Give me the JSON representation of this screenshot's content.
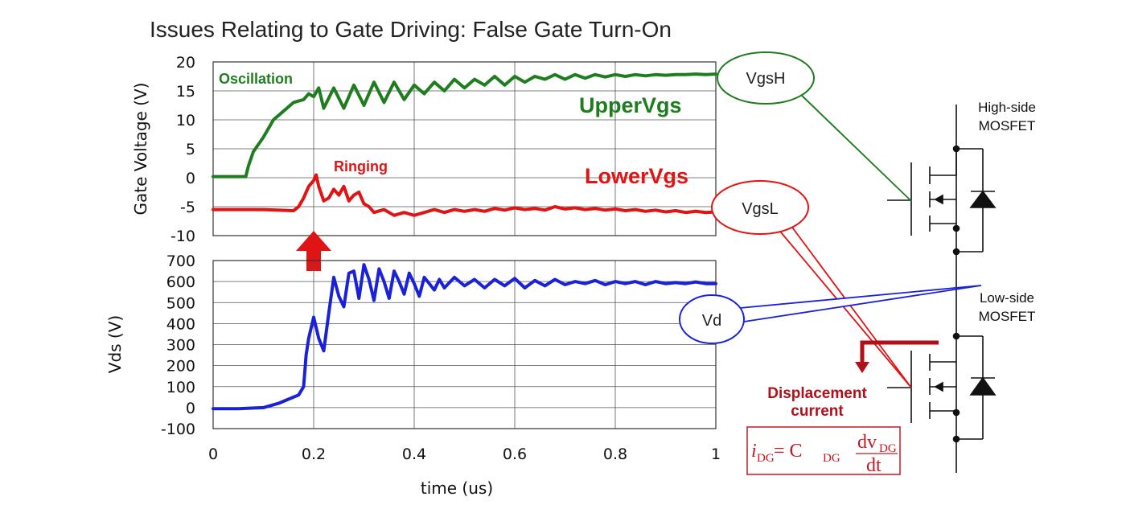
{
  "title": "Issues Relating to Gate Driving:  False Gate Turn-On",
  "colors": {
    "upper": "#1e7d1e",
    "lower": "#e01414",
    "vd": "#1a22d8",
    "callout_dark": "#b0101a",
    "grid": "#555555"
  },
  "chart_data": [
    {
      "type": "line",
      "title": "",
      "xlabel": "",
      "ylabel": "Gate Voltage (V)",
      "xlim": [
        0,
        1
      ],
      "ylim": [
        -10,
        20
      ],
      "yticks": [
        "20",
        "15",
        "10",
        "5",
        "0",
        "-5",
        "-10"
      ],
      "series": [
        {
          "name": "UpperVgs",
          "x": [
            0,
            0.065,
            0.07,
            0.08,
            0.1,
            0.12,
            0.14,
            0.16,
            0.18,
            0.19,
            0.2,
            0.21,
            0.22,
            0.24,
            0.26,
            0.28,
            0.3,
            0.32,
            0.34,
            0.36,
            0.38,
            0.4,
            0.42,
            0.44,
            0.46,
            0.48,
            0.5,
            0.52,
            0.54,
            0.56,
            0.58,
            0.6,
            0.62,
            0.64,
            0.66,
            0.68,
            0.7,
            0.72,
            0.74,
            0.76,
            0.78,
            0.8,
            0.82,
            0.84,
            0.86,
            0.88,
            0.9,
            0.92,
            0.94,
            0.96,
            0.98,
            1.0
          ],
          "values": [
            0.2,
            0.2,
            2,
            4.5,
            7,
            10,
            11.5,
            13,
            13.5,
            14.5,
            14,
            15.5,
            12,
            15.5,
            12,
            16,
            12.5,
            16.5,
            13,
            16.5,
            13.5,
            16,
            14.5,
            16.5,
            15,
            17,
            15.5,
            17,
            16,
            17.5,
            16,
            17.5,
            16.5,
            17.5,
            17,
            17.8,
            17,
            17.8,
            17.2,
            17.8,
            17.4,
            17.8,
            17.5,
            17.8,
            17.6,
            17.8,
            17.7,
            17.8,
            17.8,
            17.9,
            17.8,
            17.9
          ]
        },
        {
          "name": "LowerVgs",
          "x": [
            0,
            0.1,
            0.16,
            0.17,
            0.18,
            0.19,
            0.2,
            0.205,
            0.21,
            0.22,
            0.23,
            0.24,
            0.25,
            0.26,
            0.27,
            0.28,
            0.29,
            0.3,
            0.31,
            0.32,
            0.34,
            0.36,
            0.38,
            0.4,
            0.42,
            0.44,
            0.46,
            0.48,
            0.5,
            0.52,
            0.54,
            0.56,
            0.58,
            0.6,
            0.62,
            0.64,
            0.66,
            0.68,
            0.7,
            0.72,
            0.74,
            0.76,
            0.78,
            0.8,
            0.82,
            0.84,
            0.86,
            0.88,
            0.9,
            0.92,
            0.94,
            0.96,
            0.98,
            1.0
          ],
          "values": [
            -5.5,
            -5.5,
            -5.7,
            -5,
            -3.5,
            -1.5,
            -0.5,
            0.5,
            -1.5,
            -4,
            -3.5,
            -2,
            -3,
            -1.5,
            -4,
            -3,
            -2.5,
            -4.5,
            -5,
            -6,
            -5.5,
            -6.5,
            -6,
            -6.5,
            -6,
            -5.5,
            -6,
            -5.5,
            -5.8,
            -5.5,
            -5.8,
            -5.3,
            -5.6,
            -5.2,
            -5.5,
            -5.3,
            -5.6,
            -5,
            -5.4,
            -5.2,
            -5.5,
            -5.3,
            -5.6,
            -5.4,
            -5.7,
            -5.5,
            -5.8,
            -5.6,
            -5.9,
            -5.7,
            -6,
            -5.8,
            -6,
            -5.9
          ]
        }
      ]
    },
    {
      "type": "line",
      "title": "",
      "xlabel": "time (us)",
      "ylabel": "Vds (V)",
      "xlim": [
        0,
        1
      ],
      "ylim": [
        -100,
        700
      ],
      "yticks": [
        "700",
        "600",
        "500",
        "400",
        "300",
        "200",
        "100",
        "0",
        "-100"
      ],
      "xticks": [
        "0",
        "0.2",
        "0.4",
        "0.6",
        "0.8",
        "1"
      ],
      "series": [
        {
          "name": "Vd",
          "x": [
            0,
            0.05,
            0.1,
            0.13,
            0.15,
            0.17,
            0.18,
            0.185,
            0.19,
            0.2,
            0.21,
            0.22,
            0.23,
            0.24,
            0.25,
            0.26,
            0.27,
            0.28,
            0.29,
            0.3,
            0.31,
            0.32,
            0.33,
            0.34,
            0.35,
            0.36,
            0.37,
            0.38,
            0.39,
            0.4,
            0.41,
            0.42,
            0.43,
            0.44,
            0.45,
            0.46,
            0.48,
            0.5,
            0.52,
            0.54,
            0.56,
            0.58,
            0.6,
            0.62,
            0.64,
            0.66,
            0.68,
            0.7,
            0.72,
            0.74,
            0.76,
            0.78,
            0.8,
            0.82,
            0.84,
            0.86,
            0.88,
            0.9,
            0.92,
            0.94,
            0.96,
            0.98,
            1.0
          ],
          "values": [
            -5,
            -5,
            0,
            20,
            40,
            60,
            100,
            250,
            330,
            430,
            330,
            270,
            450,
            620,
            530,
            480,
            640,
            650,
            520,
            680,
            610,
            510,
            660,
            600,
            520,
            650,
            600,
            540,
            640,
            590,
            530,
            620,
            590,
            560,
            610,
            570,
            620,
            580,
            610,
            570,
            610,
            580,
            615,
            570,
            605,
            580,
            610,
            585,
            600,
            590,
            605,
            585,
            600,
            590,
            600,
            585,
            600,
            590,
            595,
            590,
            598,
            590,
            590
          ]
        }
      ]
    }
  ],
  "annotations": {
    "oscillation": "Oscillation",
    "ringing": "Ringing",
    "upper_label": "UpperVgs",
    "lower_label": "LowerVgs",
    "vgsh": "VgsH",
    "vgsl": "VgsL",
    "vd": "Vd",
    "high_side_1": "High-side",
    "high_side_2": "MOSFET",
    "low_side_1": "Low-side",
    "low_side_2": "MOSFET",
    "displacement_1": "Displacement",
    "displacement_2": "current",
    "formula": {
      "i": "i",
      "i_sub": "DG",
      "eq": " = C",
      "c_sub": "DG",
      "num": "dv",
      "num_sub": "DG",
      "den": "dt"
    }
  }
}
